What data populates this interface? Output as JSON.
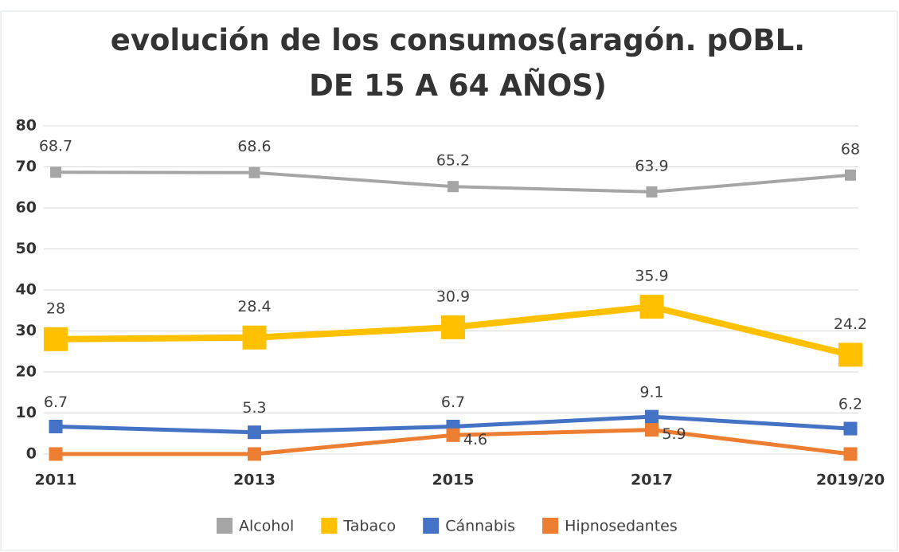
{
  "chart_data": {
    "type": "line",
    "title": "evolución de los consumos(aragón. pOBL. DE 15 A 64 AÑOS)",
    "categories": [
      "2011",
      "2013",
      "2015",
      "2017",
      "2019/20"
    ],
    "series": [
      {
        "name": "Alcohol",
        "color": "#a5a5a5",
        "values": [
          68.7,
          68.6,
          65.2,
          63.9,
          68
        ]
      },
      {
        "name": "Tabaco",
        "color": "#ffc000",
        "values": [
          28,
          28.4,
          30.9,
          35.9,
          24.2
        ]
      },
      {
        "name": "Cánnabis",
        "color": "#4472c4",
        "values": [
          6.7,
          5.3,
          6.7,
          9.1,
          6.2
        ]
      },
      {
        "name": "Hipnosedantes",
        "color": "#ed7d31",
        "values": [
          0,
          0,
          4.6,
          5.9,
          0
        ],
        "value_labels": [
          null,
          null,
          "4.6",
          "5.9",
          null
        ]
      }
    ],
    "ylim": [
      0,
      80
    ],
    "yticks": [
      0,
      10,
      20,
      30,
      40,
      50,
      60,
      70,
      80
    ],
    "grid": true,
    "legend": "bottom"
  }
}
